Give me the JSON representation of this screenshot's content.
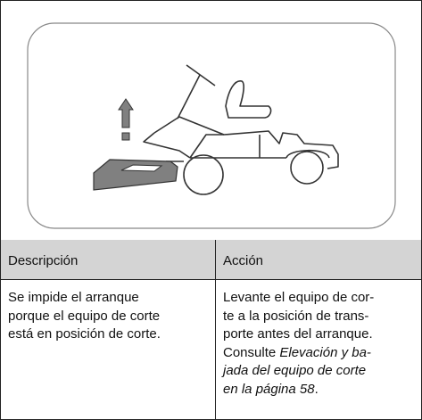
{
  "table": {
    "header": [
      "Descripción",
      "Acción"
    ],
    "rows": [
      [
        [
          "Se impide el arranque",
          "porque el equipo de corte",
          "está en posición de corte."
        ],
        [
          [
            "Levante el equipo de cor-"
          ],
          [
            "te a la posición de trans-"
          ],
          [
            "porte antes del arranque."
          ],
          [
            "Consulte ",
            "Elevación y ba-"
          ],
          [
            "jada del equipo de corte"
          ],
          [
            "en la página 58",
            "."
          ]
        ]
      ]
    ]
  }
}
